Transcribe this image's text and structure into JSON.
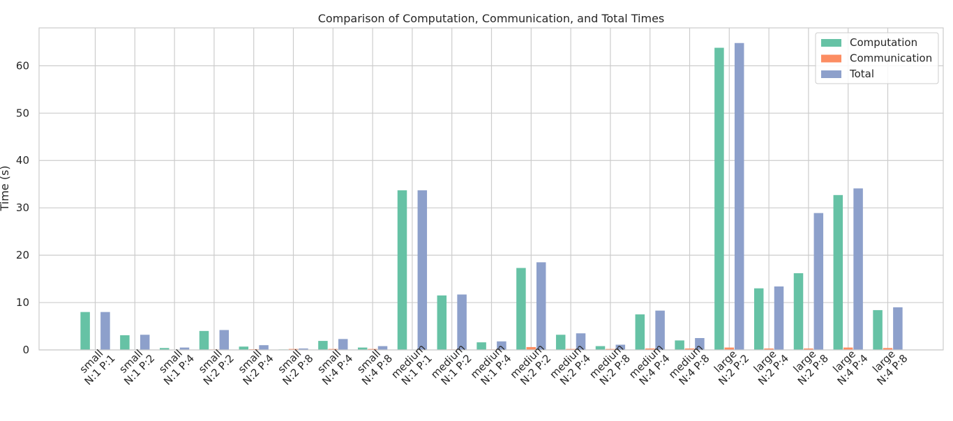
{
  "chart_data": {
    "type": "bar",
    "title": "Comparison of Computation, Communication, and Total Times",
    "xlabel": "",
    "ylabel": "Time (s)",
    "ylim": [
      0,
      68
    ],
    "yticks": [
      0,
      10,
      20,
      30,
      40,
      50,
      60
    ],
    "grid": true,
    "legend_position": "top-right",
    "categories": [
      "small\nN:1 P:1",
      "small\nN:1 P:2",
      "small\nN:1 P:4",
      "small\nN:2 P:2",
      "small\nN:2 P:4",
      "small\nN:2 P:8",
      "small\nN:4 P:4",
      "small\nN:4 P:8",
      "medium\nN:1 P:1",
      "medium\nN:1 P:2",
      "medium\nN:1 P:4",
      "medium\nN:2 P:2",
      "medium\nN:2 P:4",
      "medium\nN:2 P:8",
      "medium\nN:4 P:4",
      "medium\nN:4 P:8",
      "large\nN:2 P:2",
      "large\nN:2 P:4",
      "large\nN:2 P:8",
      "large\nN:4 P:4",
      "large\nN:4 P:8"
    ],
    "series": [
      {
        "name": "Computation",
        "color": "#66c2a5",
        "values": [
          8.0,
          3.1,
          0.4,
          4.0,
          0.7,
          0.1,
          1.9,
          0.5,
          33.7,
          11.5,
          1.6,
          17.3,
          3.2,
          0.8,
          7.5,
          2.0,
          63.8,
          13.0,
          16.2,
          32.7,
          8.4
        ]
      },
      {
        "name": "Communication",
        "color": "#fc8d62",
        "values": [
          0.02,
          0.05,
          0.05,
          0.1,
          0.15,
          0.2,
          0.2,
          0.2,
          0.05,
          0.1,
          0.1,
          0.6,
          0.2,
          0.2,
          0.3,
          0.3,
          0.5,
          0.3,
          0.3,
          0.5,
          0.4
        ]
      },
      {
        "name": "Total",
        "color": "#8da0cb",
        "values": [
          8.0,
          3.2,
          0.5,
          4.2,
          1.0,
          0.3,
          2.3,
          0.8,
          33.7,
          11.7,
          1.8,
          18.5,
          3.5,
          1.1,
          8.3,
          2.5,
          64.8,
          13.4,
          28.9,
          34.1,
          9.0
        ]
      }
    ]
  }
}
